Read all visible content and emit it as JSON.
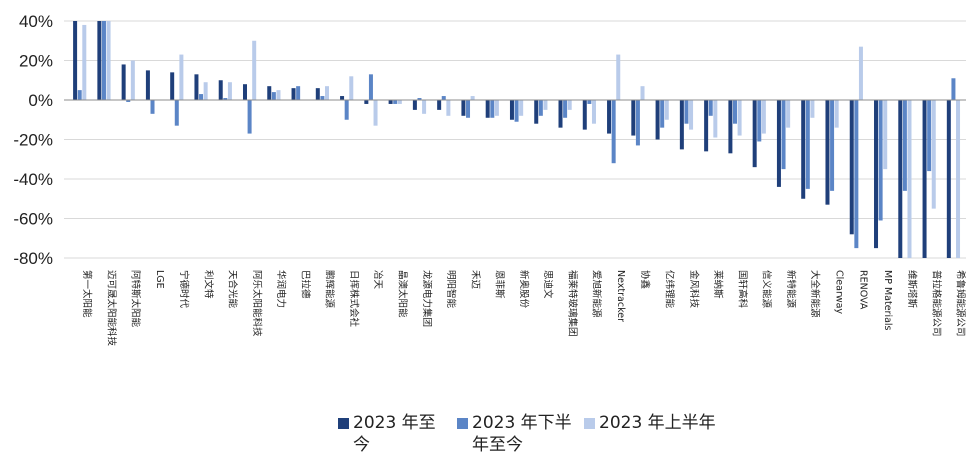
{
  "chart_data": {
    "type": "bar",
    "title": "",
    "xlabel": "",
    "ylabel": "",
    "ylim": [
      -80,
      40
    ],
    "yticks": [
      40,
      20,
      0,
      -20,
      -40,
      -60,
      -80
    ],
    "ytick_labels": [
      "40%",
      "20%",
      "0%",
      "-20%",
      "-40%",
      "-60%",
      "-80%"
    ],
    "grid": "horizontal",
    "legend_position": "bottom",
    "categories": [
      "第一太阳能",
      "迈可晟太阳能科技",
      "阿特斯太阳能",
      "LGE",
      "宁德时代",
      "利文特",
      "天合光能",
      "阿乐太阳能科技",
      "华润电力",
      "巴拉德",
      "鹏辉能源",
      "日挥株式会社",
      "冶天",
      "晶澳太阳能",
      "龙源电力集团",
      "明阳智能",
      "禾迈",
      "恩菲斯",
      "新奥股份",
      "思迪文",
      "福莱特玻璃集团",
      "爱旭新能源",
      "Nextracker",
      "协鑫",
      "亿纬锂能",
      "金风科技",
      "莱纳斯",
      "国轩高科",
      "信义能源",
      "新特能源",
      "大全新能源",
      "Clearway",
      "RENOVA",
      "MP Materials",
      "维斯塔斯",
      "普拉格能源公司",
      "希鲁姆能源公司"
    ],
    "series": [
      {
        "name": "2023 年至今",
        "color": "#1f3f7a",
        "values": [
          40,
          40,
          18,
          15,
          14,
          13,
          10,
          8,
          7,
          6,
          6,
          2,
          -2,
          -2,
          -5,
          -5,
          -8,
          -9,
          -10,
          -12,
          -14,
          -15,
          -17,
          -18,
          -20,
          -25,
          -26,
          -27,
          -34,
          -44,
          -50,
          -53,
          -68,
          -75,
          -81,
          -81,
          -81
        ]
      },
      {
        "name": "2023 年下半年至今",
        "color": "#5b85c6",
        "values": [
          5,
          40,
          -1,
          -7,
          -13,
          3,
          1,
          -17,
          4,
          7,
          2,
          -10,
          13,
          -2,
          1,
          2,
          -9,
          -9,
          -11,
          -8,
          -9,
          -2,
          -32,
          -23,
          -14,
          -12,
          -8,
          -12,
          -21,
          -35,
          -45,
          -46,
          -75,
          -61,
          -46,
          -36,
          11
        ]
      },
      {
        "name": "2023 年上半年",
        "color": "#b9cbea",
        "values": [
          38,
          40,
          20,
          0,
          23,
          9,
          9,
          30,
          5,
          0,
          7,
          12,
          -13,
          -2,
          -7,
          -8,
          2,
          -8,
          -8,
          -5,
          -5,
          -12,
          23,
          7,
          -10,
          -15,
          -19,
          -18,
          -17,
          -14,
          -9,
          -14,
          27,
          -35,
          -81,
          -55,
          -80
        ]
      }
    ]
  },
  "legend": {
    "items": [
      {
        "label": "2023 年至今",
        "color": "#1f3f7a"
      },
      {
        "label": "2023 年下半年至今",
        "color": "#5b85c6"
      },
      {
        "label": "2023 年上半年",
        "color": "#b9cbea"
      }
    ]
  }
}
